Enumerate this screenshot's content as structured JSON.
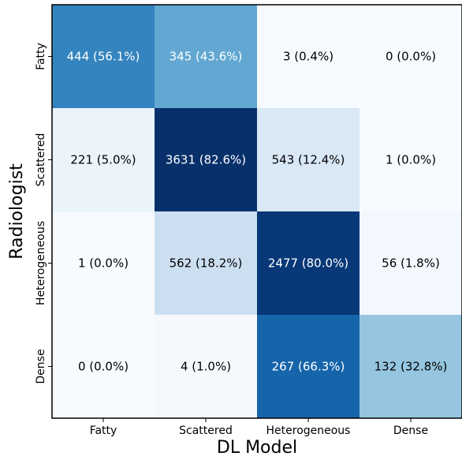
{
  "chart_data": {
    "type": "heatmap",
    "xlabel": "DL Model",
    "ylabel": "Radiologist",
    "x_categories": [
      "Fatty",
      "Scattered",
      "Heterogeneous",
      "Dense"
    ],
    "y_categories": [
      "Fatty",
      "Scattered",
      "Heterogeneous",
      "Dense"
    ],
    "counts": [
      [
        444,
        345,
        3,
        0
      ],
      [
        221,
        3631,
        543,
        1
      ],
      [
        1,
        562,
        2477,
        56
      ],
      [
        0,
        4,
        267,
        132
      ]
    ],
    "percentages": [
      [
        56.1,
        43.6,
        0.4,
        0.0
      ],
      [
        5.0,
        82.6,
        12.4,
        0.0
      ],
      [
        0.0,
        18.2,
        80.0,
        1.8
      ],
      [
        0.0,
        1.0,
        66.3,
        32.8
      ]
    ],
    "cell_labels": [
      [
        "444 (56.1%)",
        "345 (43.6%)",
        "3 (0.4%)",
        "0 (0.0%)"
      ],
      [
        "221 (5.0%)",
        "3631 (82.6%)",
        "543 (12.4%)",
        "1 (0.0%)"
      ],
      [
        "1 (0.0%)",
        "562 (18.2%)",
        "2477 (80.0%)",
        "56 (1.8%)"
      ],
      [
        "0 (0.0%)",
        "4 (1.0%)",
        "267 (66.3%)",
        "132 (32.8%)"
      ]
    ],
    "colormap": "Blues",
    "color_low": "#f7fbff",
    "color_high": "#08306b",
    "light_text_color": "#ffffff",
    "dark_text_color": "#000000",
    "grid": false
  }
}
